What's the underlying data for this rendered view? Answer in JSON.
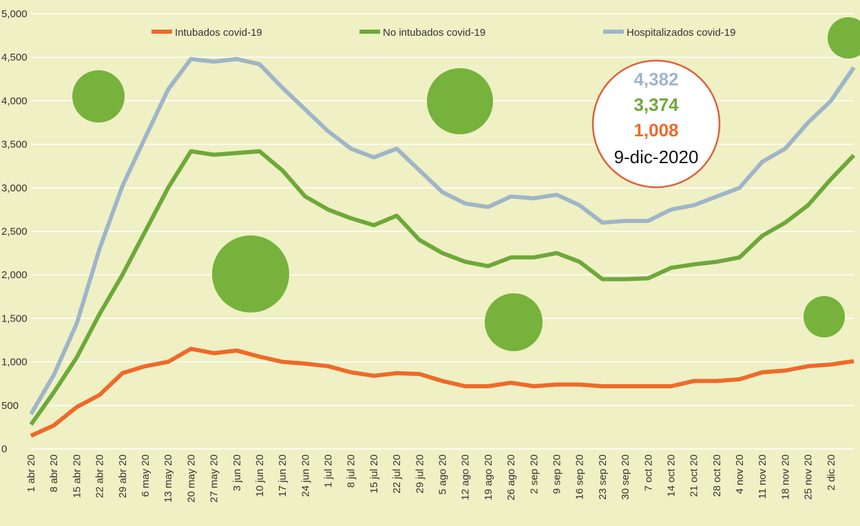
{
  "chart_data": {
    "type": "line",
    "categories": [
      "1 abr 20",
      "8 abr 20",
      "15 abr 20",
      "22 abr 20",
      "29 abr 20",
      "6 may 20",
      "13 may 20",
      "20 may 20",
      "27 may 20",
      "3 jun 20",
      "10 jun 20",
      "17 jun 20",
      "24 jun 20",
      "1 jul 20",
      "8 jul 20",
      "15 jul 20",
      "22 jul 20",
      "29 jul 20",
      "5 ago 20",
      "12 ago 20",
      "19 ago 20",
      "26 ago 20",
      "2 sep 20",
      "9 sep 20",
      "16 sep 20",
      "23 sep 20",
      "30 sep 20",
      "7 oct 20",
      "14 oct 20",
      "21 oct 20",
      "28 oct 20",
      "4 nov 20",
      "11 nov 20",
      "18 nov 20",
      "25 nov 20",
      "2 dic 20",
      null
    ],
    "series": [
      {
        "name": "Intubados covid-19",
        "color": "#ee6a2a",
        "values": [
          150,
          270,
          480,
          620,
          870,
          950,
          1000,
          1150,
          1100,
          1130,
          1060,
          1000,
          980,
          950,
          880,
          840,
          870,
          860,
          780,
          720,
          720,
          760,
          720,
          740,
          740,
          720,
          720,
          720,
          720,
          780,
          780,
          800,
          880,
          900,
          950,
          970,
          1008
        ],
        "value_labels": [
          null,
          null,
          null,
          null,
          null,
          null,
          null,
          null,
          null,
          null,
          null,
          null,
          null,
          null,
          null,
          null,
          null,
          null,
          null,
          null,
          null,
          null,
          null,
          null,
          null,
          null,
          null,
          null,
          null,
          null,
          null,
          null,
          null,
          null,
          null,
          null,
          "1,008"
        ]
      },
      {
        "name": "No intubados covid-19",
        "color": "#6ea83a",
        "values": [
          280,
          650,
          1050,
          1550,
          2000,
          2500,
          3000,
          3420,
          3380,
          3400,
          3420,
          3200,
          2900,
          2750,
          2650,
          2570,
          2680,
          2400,
          2250,
          2150,
          2100,
          2200,
          2200,
          2250,
          2150,
          1950,
          1950,
          1960,
          2080,
          2120,
          2150,
          2200,
          2450,
          2600,
          2800,
          3100,
          3374
        ],
        "value_labels": [
          null,
          null,
          null,
          null,
          null,
          null,
          null,
          null,
          null,
          null,
          null,
          null,
          null,
          null,
          null,
          null,
          null,
          null,
          null,
          null,
          null,
          null,
          null,
          null,
          null,
          null,
          null,
          null,
          null,
          null,
          null,
          null,
          null,
          null,
          null,
          null,
          "3,374"
        ]
      },
      {
        "name": "Hospitalizados covid-19",
        "color": "#9fb5c8",
        "values": [
          400,
          850,
          1440,
          2300,
          3020,
          3580,
          4130,
          4480,
          4450,
          4480,
          4420,
          4150,
          3900,
          3650,
          3450,
          3350,
          3450,
          3200,
          2950,
          2820,
          2780,
          2900,
          2880,
          2920,
          2800,
          2600,
          2620,
          2620,
          2750,
          2800,
          2900,
          3000,
          3300,
          3450,
          3750,
          4000,
          4382
        ],
        "value_labels": [
          null,
          null,
          null,
          null,
          null,
          null,
          null,
          null,
          null,
          null,
          null,
          null,
          null,
          null,
          null,
          null,
          null,
          null,
          null,
          null,
          null,
          null,
          null,
          null,
          null,
          null,
          null,
          null,
          null,
          null,
          null,
          null,
          null,
          null,
          null,
          null,
          "4,382"
        ]
      }
    ],
    "annotation": "9-dic-2020",
    "ylim": [
      0,
      5000
    ],
    "yticks": [
      0,
      500,
      {
        "value": 1000,
        "label": "1,000"
      },
      {
        "value": 1500,
        "label": "1,500"
      },
      {
        "value": 2000,
        "label": "2,000"
      },
      {
        "value": 2500,
        "label": "2,500"
      },
      {
        "value": 3000,
        "label": "3,000"
      },
      {
        "value": 3500,
        "label": "3,500"
      },
      {
        "value": 4000,
        "label": "4,000"
      },
      {
        "value": 4500,
        "label": "4,500"
      },
      {
        "value": 5000,
        "label": "5,000"
      }
    ],
    "grid": true
  }
}
